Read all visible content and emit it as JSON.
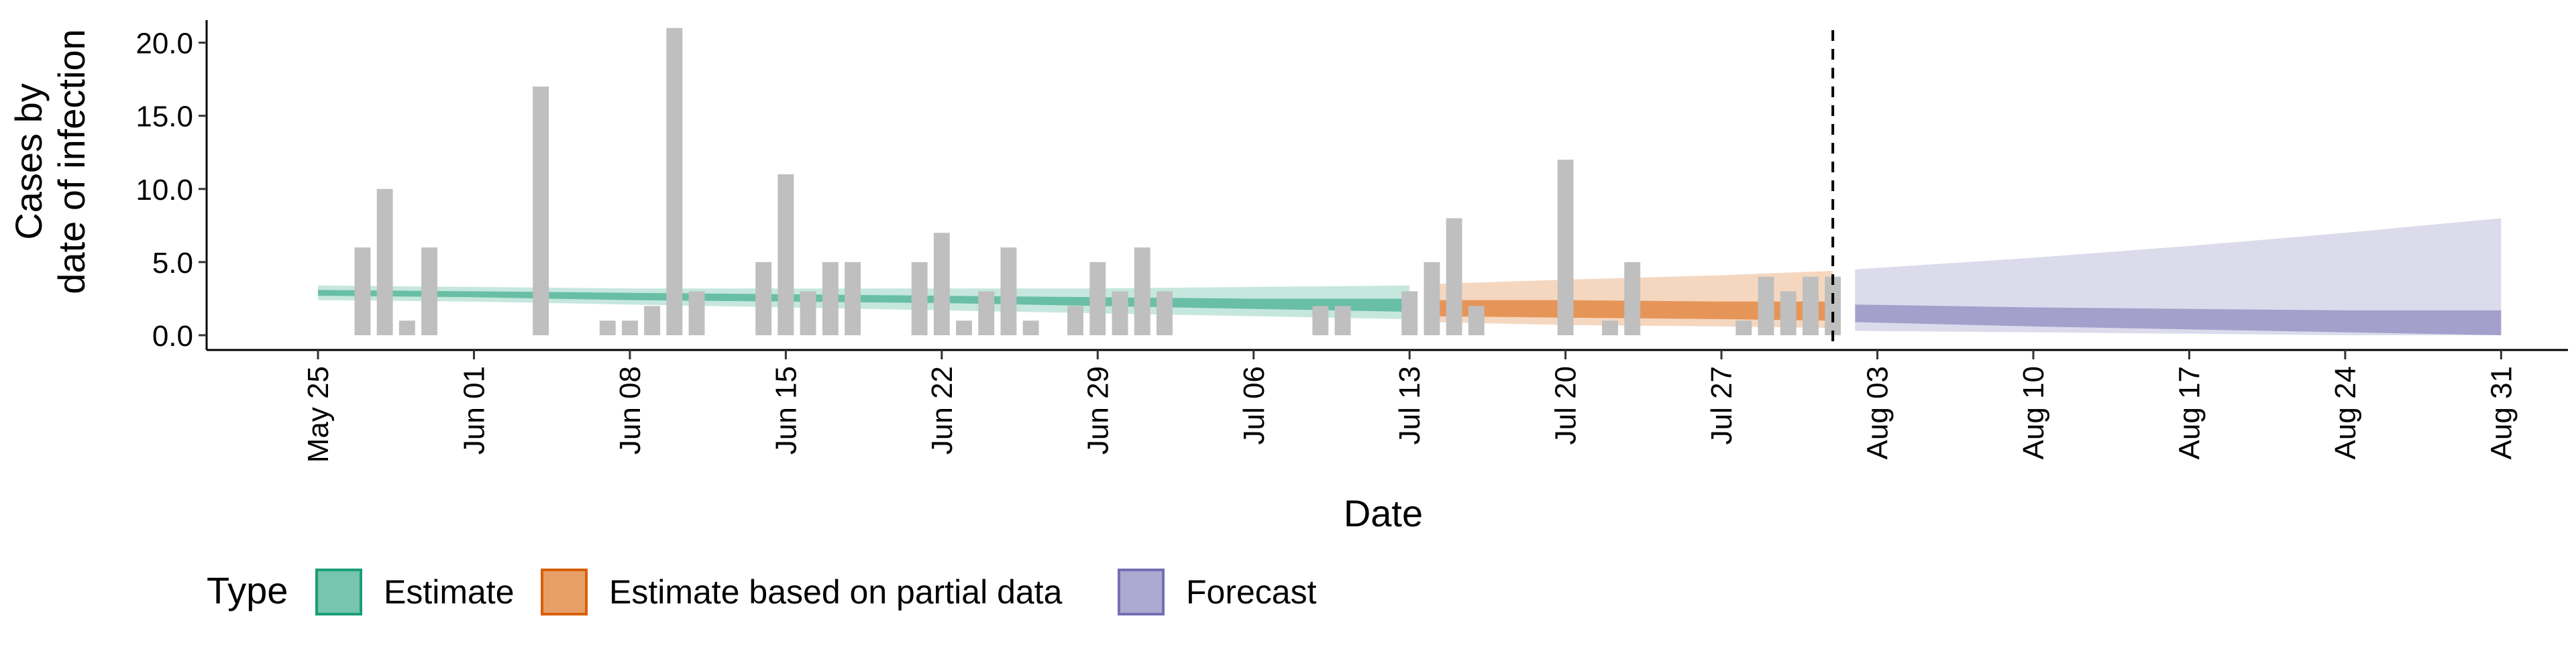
{
  "chart_data": {
    "type": "bar",
    "xlabel": "Date",
    "ylabel": "Cases by\ndate of infection",
    "ylim": [
      0,
      22
    ],
    "yticks": [
      "0.0",
      "5.0",
      "10.0",
      "15.0",
      "20.0"
    ],
    "x_tick_labels": [
      "May 25",
      "Jun 01",
      "Jun 08",
      "Jun 15",
      "Jun 22",
      "Jun 29",
      "Jul 06",
      "Jul 13",
      "Jul 20",
      "Jul 27",
      "Aug 03",
      "Aug 10",
      "Aug 17",
      "Aug 24",
      "Aug 31"
    ],
    "x_tick_dates": [
      "2020-05-25",
      "2020-06-01",
      "2020-06-08",
      "2020-06-15",
      "2020-06-22",
      "2020-06-29",
      "2020-07-06",
      "2020-07-13",
      "2020-07-20",
      "2020-07-27",
      "2020-08-03",
      "2020-08-10",
      "2020-08-17",
      "2020-08-24",
      "2020-08-31"
    ],
    "xlim": [
      "2020-05-20",
      "2020-09-03"
    ],
    "grid": false,
    "legend": {
      "title": "Type",
      "position": "bottom-left",
      "entries": [
        {
          "label": "Estimate",
          "color": "#1b9e77"
        },
        {
          "label": "Estimate based on partial data",
          "color": "#d95f02"
        },
        {
          "label": "Forecast",
          "color": "#7570b3"
        }
      ]
    },
    "reported_cases": {
      "color": "#bfbfbf",
      "dates": [
        "2020-05-27",
        "2020-05-28",
        "2020-05-29",
        "2020-05-30",
        "2020-06-04",
        "2020-06-07",
        "2020-06-08",
        "2020-06-09",
        "2020-06-10",
        "2020-06-11",
        "2020-06-14",
        "2020-06-15",
        "2020-06-16",
        "2020-06-17",
        "2020-06-18",
        "2020-06-21",
        "2020-06-22",
        "2020-06-23",
        "2020-06-24",
        "2020-06-25",
        "2020-06-26",
        "2020-06-28",
        "2020-06-29",
        "2020-06-30",
        "2020-07-01",
        "2020-07-02",
        "2020-07-09",
        "2020-07-10",
        "2020-07-13",
        "2020-07-14",
        "2020-07-15",
        "2020-07-16",
        "2020-07-20",
        "2020-07-22",
        "2020-07-23",
        "2020-07-28",
        "2020-07-29",
        "2020-07-30",
        "2020-07-31",
        "2020-08-01"
      ],
      "values": [
        6,
        10,
        1,
        6,
        17,
        1,
        1,
        2,
        21,
        3,
        5,
        11,
        3,
        5,
        5,
        5,
        7,
        1,
        3,
        6,
        1,
        2,
        5,
        3,
        6,
        3,
        2,
        2,
        3,
        5,
        8,
        2,
        12,
        1,
        5,
        1,
        4,
        3,
        4,
        4
      ]
    },
    "vline_date": "2020-08-01",
    "series": [
      {
        "name": "Estimate",
        "color": "#1b9e77",
        "x": [
          "2020-05-25",
          "2020-06-01",
          "2020-06-08",
          "2020-06-15",
          "2020-06-22",
          "2020-06-29",
          "2020-07-06",
          "2020-07-13"
        ],
        "outer_low": [
          2.4,
          2.3,
          2.1,
          1.9,
          1.7,
          1.5,
          1.3,
          1.1
        ],
        "outer_high": [
          3.4,
          3.3,
          3.2,
          3.2,
          3.2,
          3.2,
          3.3,
          3.4
        ],
        "inner_low": [
          2.7,
          2.6,
          2.4,
          2.3,
          2.2,
          2.0,
          1.8,
          1.6
        ],
        "inner_high": [
          3.1,
          3.0,
          2.9,
          2.8,
          2.7,
          2.6,
          2.5,
          2.5
        ]
      },
      {
        "name": "Estimate based on partial data",
        "color": "#d95f02",
        "x": [
          "2020-07-14",
          "2020-07-20",
          "2020-07-27",
          "2020-08-01"
        ],
        "outer_low": [
          0.9,
          0.7,
          0.6,
          0.5
        ],
        "outer_high": [
          3.5,
          3.8,
          4.1,
          4.4
        ],
        "inner_low": [
          1.3,
          1.2,
          1.1,
          1.0
        ],
        "inner_high": [
          2.4,
          2.4,
          2.3,
          2.3
        ]
      },
      {
        "name": "Forecast",
        "color": "#7570b3",
        "x": [
          "2020-08-02",
          "2020-08-10",
          "2020-08-17",
          "2020-08-24",
          "2020-08-31"
        ],
        "outer_low": [
          0.3,
          0.2,
          0.1,
          0.0,
          0.0
        ],
        "outer_high": [
          4.5,
          5.3,
          6.1,
          7.0,
          8.0
        ],
        "inner_low": [
          0.9,
          0.6,
          0.4,
          0.2,
          0.0
        ],
        "inner_high": [
          2.1,
          1.9,
          1.8,
          1.7,
          1.7
        ]
      }
    ]
  }
}
